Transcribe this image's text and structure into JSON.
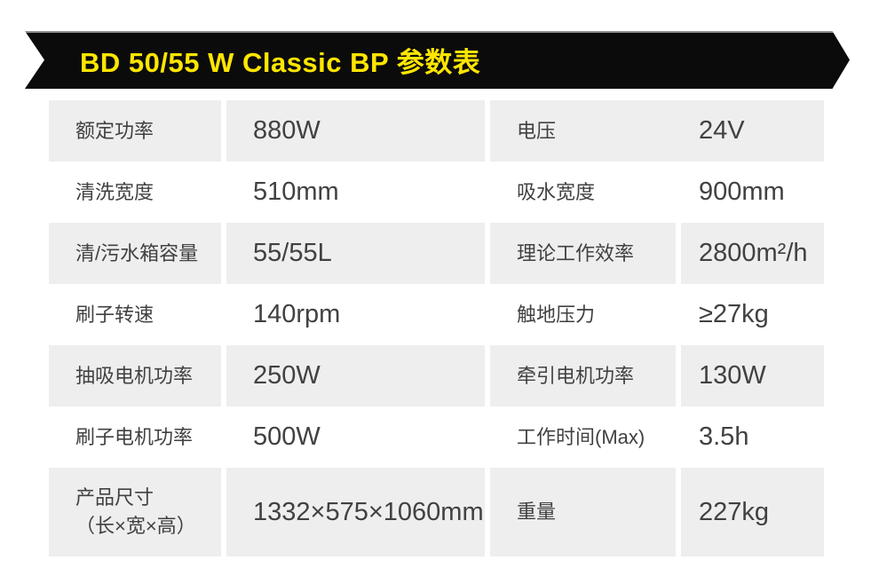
{
  "banner": {
    "title": "BD 50/55 W Classic BP 参数表"
  },
  "table": {
    "rows": [
      {
        "label1": "额定功率",
        "value1": "880W",
        "label2": "电压",
        "value2": "24V"
      },
      {
        "label1": "清洗宽度",
        "value1": "510mm",
        "label2": "吸水宽度",
        "value2": "900mm"
      },
      {
        "label1": "清/污水箱容量",
        "value1": "55/55L",
        "label2": "理论工作效率",
        "value2": "2800m²/h"
      },
      {
        "label1": "刷子转速",
        "value1": "140rpm",
        "label2": "触地压力",
        "value2": "≥27kg"
      },
      {
        "label1": "抽吸电机功率",
        "value1": "250W",
        "label2": "牵引电机功率",
        "value2": "130W"
      },
      {
        "label1": "刷子电机功率",
        "value1": "500W",
        "label2": "工作时间(Max)",
        "value2": "3.5h"
      },
      {
        "label1": "产品尺寸\n（长×宽×高）",
        "value1": "1332×575×1060mm",
        "label2": "重量",
        "value2": "227kg"
      }
    ]
  },
  "theme": {
    "banner_bg": "#0b0b0b",
    "banner_text": "#ffe600",
    "edge_highlight": "#8d8d8d",
    "row_shade": "#eeeeee",
    "text_color": "#414141"
  }
}
